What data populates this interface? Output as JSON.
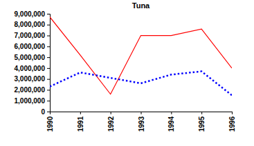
{
  "chart_data": {
    "type": "line",
    "title": "Tuna",
    "categories": [
      "1990",
      "1991",
      "1992",
      "1993",
      "1994",
      "1995",
      "1996"
    ],
    "series": [
      {
        "color": "#ff0000",
        "line_style": "solid",
        "values": [
          8700000,
          5200000,
          1600000,
          7000000,
          7000000,
          7600000,
          4000000
        ]
      },
      {
        "color": "#0000ff",
        "line_style": "dotted",
        "values": [
          2300000,
          3600000,
          3100000,
          2600000,
          3400000,
          3700000,
          1500000
        ]
      }
    ],
    "ylim": [
      0,
      9000000
    ],
    "yticks": [
      0,
      {
        "value": 1000000,
        "label": "1,000,000"
      },
      {
        "value": 2000000,
        "label": "2,000,000"
      },
      {
        "value": 3000000,
        "label": "3,000,000"
      },
      {
        "value": 4000000,
        "label": "4,000,000"
      },
      {
        "value": 5000000,
        "label": "5,000,000"
      },
      {
        "value": 6000000,
        "label": "6,000,000"
      },
      {
        "value": 7000000,
        "label": "7,000,000"
      },
      {
        "value": 8000000,
        "label": "8,000,000"
      },
      {
        "value": 9000000,
        "label": "9,000,000"
      }
    ],
    "grid": false
  }
}
